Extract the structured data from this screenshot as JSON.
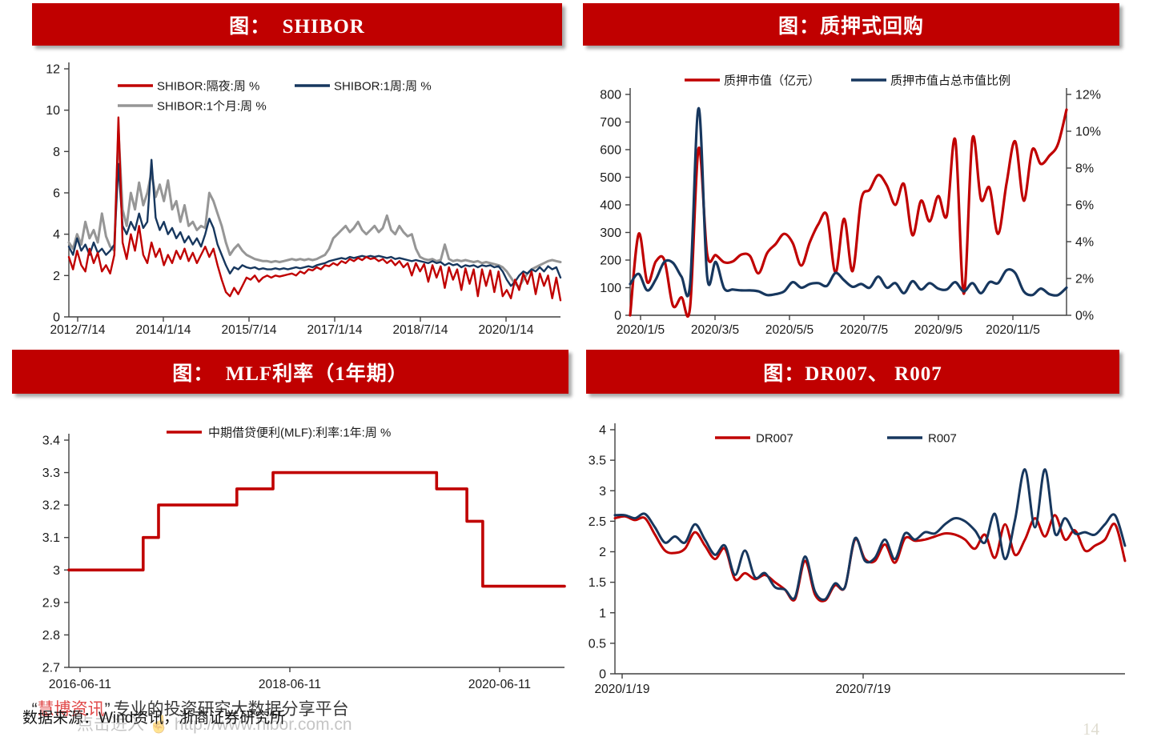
{
  "page": {
    "page_number": "14"
  },
  "footer": {
    "brand_quote_open": "“",
    "brand_name": "慧博资讯",
    "brand_quote_close": "”",
    "brand_tagline": "专业的投资研究大数据分享平台",
    "source_line": "数据来源：Wind资讯，浙商证券研究所",
    "watermark_line": "点击进入 ☝ http://www.hibor.com.cn"
  },
  "colors": {
    "banner_red": "#c00000",
    "series_red": "#c00000",
    "series_navy": "#17375e",
    "series_gray": "#969696",
    "axis": "#404040",
    "text": "#1a1a1a"
  },
  "chart_data": [
    {
      "type": "line",
      "slug": "shibor-chart",
      "title": "图：  SHIBOR",
      "legend_position": "top-inside",
      "grid": false,
      "y_axis": {
        "min": 0,
        "max": 12,
        "tick_labels": [
          "12",
          "10",
          "8",
          "6",
          "4",
          "2",
          "0"
        ]
      },
      "x_ticks": [
        "2012/7/14",
        "2014/1/14",
        "2015/7/14",
        "2017/1/14",
        "2018/7/14",
        "2020/1/14"
      ],
      "series": [
        {
          "name": "SHIBOR:隔夜:周 %",
          "color": "series_red",
          "values": [
            2.9,
            2.3,
            3.2,
            2.5,
            2.2,
            3.3,
            2.6,
            3.1,
            2.2,
            2.5,
            2.1,
            3.0,
            9.65,
            3.6,
            2.8,
            4.0,
            3.2,
            4.4,
            3.0,
            2.6,
            3.6,
            2.9,
            3.3,
            2.5,
            3.0,
            2.6,
            3.2,
            2.8,
            3.3,
            2.7,
            3.1,
            2.6,
            3.0,
            3.4,
            2.9,
            3.3,
            2.5,
            1.8,
            1.2,
            1.0,
            1.4,
            1.1,
            1.5,
            1.9,
            1.8,
            2.0,
            1.7,
            1.9,
            2.0,
            1.9,
            2.0,
            1.95,
            2.0,
            2.05,
            2.1,
            2.0,
            2.2,
            2.1,
            2.3,
            2.25,
            2.4,
            2.3,
            2.5,
            2.45,
            2.6,
            2.5,
            2.7,
            2.6,
            2.8,
            2.7,
            2.85,
            2.75,
            2.9,
            2.8,
            2.85,
            2.7,
            2.8,
            2.6,
            2.75,
            2.5,
            2.7,
            2.4,
            2.6,
            2.0,
            2.6,
            2.2,
            2.55,
            1.7,
            2.5,
            1.9,
            2.45,
            1.4,
            2.4,
            1.8,
            2.3,
            1.3,
            2.35,
            1.6,
            2.3,
            1.0,
            2.3,
            1.5,
            2.25,
            1.2,
            2.2,
            1.0,
            1.3,
            0.9,
            1.8,
            1.3,
            2.1,
            1.6,
            2.2,
            1.1,
            2.1,
            1.5,
            2.0,
            0.9,
            1.9,
            0.8
          ]
        },
        {
          "name": "SHIBOR:1周:周 %",
          "color": "series_navy",
          "values": [
            3.4,
            3.0,
            3.8,
            3.2,
            3.5,
            3.0,
            3.6,
            3.1,
            3.3,
            3.0,
            3.2,
            3.5,
            7.4,
            4.4,
            4.0,
            4.6,
            4.2,
            5.0,
            4.3,
            4.6,
            7.6,
            4.8,
            4.2,
            4.6,
            4.0,
            4.3,
            3.8,
            4.1,
            3.6,
            3.9,
            3.5,
            3.8,
            3.4,
            4.0,
            4.75,
            4.3,
            3.5,
            3.0,
            2.5,
            2.1,
            2.4,
            2.3,
            2.5,
            2.4,
            2.35,
            2.4,
            2.3,
            2.35,
            2.3,
            2.3,
            2.35,
            2.3,
            2.35,
            2.3,
            2.35,
            2.4,
            2.35,
            2.4,
            2.45,
            2.4,
            2.5,
            2.55,
            2.6,
            2.7,
            2.75,
            2.8,
            2.85,
            2.8,
            2.9,
            2.85,
            2.9,
            2.95,
            2.9,
            2.95,
            2.9,
            2.95,
            2.9,
            2.85,
            2.9,
            2.8,
            2.85,
            2.8,
            2.75,
            2.7,
            2.75,
            2.7,
            2.65,
            2.6,
            2.7,
            2.6,
            2.65,
            2.5,
            2.6,
            2.5,
            2.55,
            2.4,
            2.5,
            2.45,
            2.5,
            2.4,
            2.5,
            2.45,
            2.5,
            2.4,
            2.45,
            2.2,
            1.8,
            1.5,
            1.7,
            2.0,
            2.2,
            2.1,
            2.3,
            2.2,
            2.4,
            2.2,
            2.45,
            2.3,
            2.4,
            1.9
          ]
        },
        {
          "name": "SHIBOR:1个月:周 %",
          "color": "series_gray",
          "values": [
            3.6,
            3.3,
            4.0,
            3.5,
            4.6,
            3.8,
            4.2,
            3.6,
            5.0,
            3.9,
            3.4,
            3.2,
            9.0,
            5.2,
            4.4,
            6.0,
            5.2,
            6.5,
            5.4,
            6.0,
            7.0,
            5.8,
            6.4,
            5.6,
            6.6,
            5.2,
            5.6,
            4.6,
            5.4,
            4.4,
            4.6,
            4.2,
            4.4,
            4.3,
            6.0,
            5.6,
            5.0,
            4.4,
            3.6,
            3.0,
            3.3,
            3.5,
            3.2,
            3.0,
            2.9,
            2.8,
            2.75,
            2.7,
            2.7,
            2.65,
            2.7,
            2.65,
            2.7,
            2.75,
            2.8,
            2.75,
            2.8,
            2.75,
            2.8,
            2.75,
            2.8,
            2.9,
            3.0,
            3.3,
            3.8,
            4.0,
            4.2,
            4.4,
            4.1,
            4.3,
            4.6,
            4.2,
            4.0,
            4.2,
            4.4,
            4.1,
            4.3,
            4.9,
            4.2,
            4.0,
            4.4,
            4.1,
            3.9,
            4.0,
            3.3,
            2.9,
            2.8,
            2.75,
            2.8,
            2.7,
            2.75,
            3.5,
            2.8,
            2.7,
            2.75,
            2.7,
            2.75,
            2.7,
            2.65,
            2.7,
            2.6,
            2.65,
            2.6,
            2.55,
            2.5,
            2.4,
            2.2,
            1.9,
            1.6,
            1.45,
            1.8,
            2.1,
            2.3,
            2.4,
            2.5,
            2.6,
            2.7,
            2.75,
            2.7,
            2.65
          ]
        }
      ]
    },
    {
      "type": "line",
      "slug": "pledged-repo-chart",
      "title": "图：质押式回购",
      "legend_position": "top-inside",
      "grid": false,
      "y_axis": {
        "min": 0,
        "max": 800,
        "tick_labels": [
          "800",
          "700",
          "600",
          "500",
          "400",
          "300",
          "200",
          "100",
          "0"
        ]
      },
      "y2_axis": {
        "min": 0,
        "max": 12,
        "tick_labels": [
          "12%",
          "10%",
          "8%",
          "6%",
          "4%",
          "2%",
          "0%"
        ]
      },
      "x_ticks": [
        "2020/1/5",
        "2020/3/5",
        "2020/5/5",
        "2020/7/5",
        "2020/9/5",
        "2020/11/5"
      ],
      "series": [
        {
          "name": "质押市值（亿元）",
          "color": "series_red",
          "values": [
            0,
            295,
            120,
            195,
            200,
            35,
            65,
            28,
            605,
            222,
            218,
            192,
            195,
            220,
            215,
            152,
            225,
            258,
            295,
            262,
            180,
            265,
            330,
            362,
            155,
            350,
            160,
            418,
            455,
            508,
            470,
            400,
            475,
            290,
            415,
            340,
            432,
            360,
            635,
            78,
            640,
            420,
            462,
            295,
            480,
            630,
            415,
            600,
            548,
            578,
            620,
            745
          ]
        },
        {
          "name": "质押市值占总市值比例",
          "color": "series_navy",
          "axis": "y2",
          "values": [
            1.7,
            2.25,
            1.35,
            1.95,
            2.9,
            2.85,
            2.1,
            1.65,
            11.25,
            2.1,
            2.9,
            1.45,
            1.4,
            1.35,
            1.35,
            1.3,
            1.1,
            1.15,
            1.3,
            1.8,
            1.5,
            1.7,
            1.75,
            1.6,
            2.3,
            1.9,
            1.55,
            1.7,
            1.5,
            2.1,
            1.5,
            1.75,
            1.2,
            1.85,
            1.4,
            1.75,
            1.45,
            1.4,
            1.8,
            1.3,
            1.75,
            1.2,
            1.8,
            1.75,
            2.45,
            2.3,
            1.3,
            1.1,
            1.45,
            1.15,
            1.1,
            1.5
          ]
        }
      ]
    },
    {
      "type": "line",
      "slug": "mlf-rate-chart",
      "title": "图：  MLF利率（1年期）",
      "legend_position": "top-inside",
      "grid": false,
      "y_axis": {
        "min": 2.7,
        "max": 3.4,
        "tick_labels": [
          "3.4",
          "3.3",
          "3.2",
          "3.1",
          "3",
          "2.9",
          "2.8",
          "2.7"
        ]
      },
      "x_ticks": [
        "2016-06-11",
        "2018-06-11",
        "2020-06-11"
      ],
      "series": [
        {
          "name": "中期借贷便利(MLF):利率:1年:周 %",
          "color": "series_red",
          "points": [
            [
              0,
              3.0
            ],
            [
              0.15,
              3.0
            ],
            [
              0.15,
              3.1
            ],
            [
              0.181,
              3.1
            ],
            [
              0.181,
              3.2
            ],
            [
              0.339,
              3.2
            ],
            [
              0.339,
              3.25
            ],
            [
              0.412,
              3.25
            ],
            [
              0.412,
              3.3
            ],
            [
              0.742,
              3.3
            ],
            [
              0.742,
              3.25
            ],
            [
              0.803,
              3.25
            ],
            [
              0.803,
              3.15
            ],
            [
              0.835,
              3.15
            ],
            [
              0.835,
              2.95
            ],
            [
              1,
              2.95
            ]
          ]
        }
      ]
    },
    {
      "type": "line",
      "slug": "dr007-r007-chart",
      "title": "图：DR007、 R007",
      "legend_position": "top-inside",
      "grid": false,
      "y_axis": {
        "min": 0,
        "max": 4,
        "tick_labels": [
          "4",
          "3.5",
          "3",
          "2.5",
          "2",
          "1.5",
          "1",
          "0.5",
          "0"
        ]
      },
      "x_ticks": [
        "2020/1/19",
        "2020/7/19"
      ],
      "series": [
        {
          "name": "DR007",
          "color": "series_red",
          "values": [
            2.55,
            2.58,
            2.52,
            2.55,
            2.28,
            2.02,
            1.98,
            2.05,
            2.32,
            2.1,
            1.88,
            2.05,
            1.55,
            1.65,
            1.55,
            1.62,
            1.5,
            1.38,
            1.22,
            1.85,
            1.3,
            1.2,
            1.45,
            1.42,
            2.2,
            1.88,
            1.85,
            2.12,
            1.82,
            2.22,
            2.18,
            2.2,
            2.25,
            2.3,
            2.28,
            2.2,
            2.05,
            2.28,
            1.9,
            2.45,
            1.95,
            2.2,
            2.55,
            2.25,
            2.6,
            2.2,
            2.35,
            2.02,
            2.1,
            2.2,
            2.45,
            1.85
          ]
        },
        {
          "name": "R007",
          "color": "series_navy",
          "values": [
            2.6,
            2.6,
            2.55,
            2.62,
            2.4,
            2.15,
            2.25,
            2.15,
            2.45,
            2.2,
            1.95,
            2.1,
            1.62,
            2.02,
            1.58,
            1.65,
            1.42,
            1.38,
            1.25,
            1.92,
            1.35,
            1.22,
            1.48,
            1.42,
            2.22,
            1.85,
            1.9,
            2.2,
            1.88,
            2.3,
            2.2,
            2.32,
            2.3,
            2.45,
            2.55,
            2.5,
            2.35,
            2.15,
            2.62,
            1.88,
            2.52,
            3.35,
            2.4,
            3.35,
            2.3,
            2.55,
            2.3,
            2.32,
            2.28,
            2.45,
            2.6,
            2.1
          ]
        }
      ]
    }
  ]
}
